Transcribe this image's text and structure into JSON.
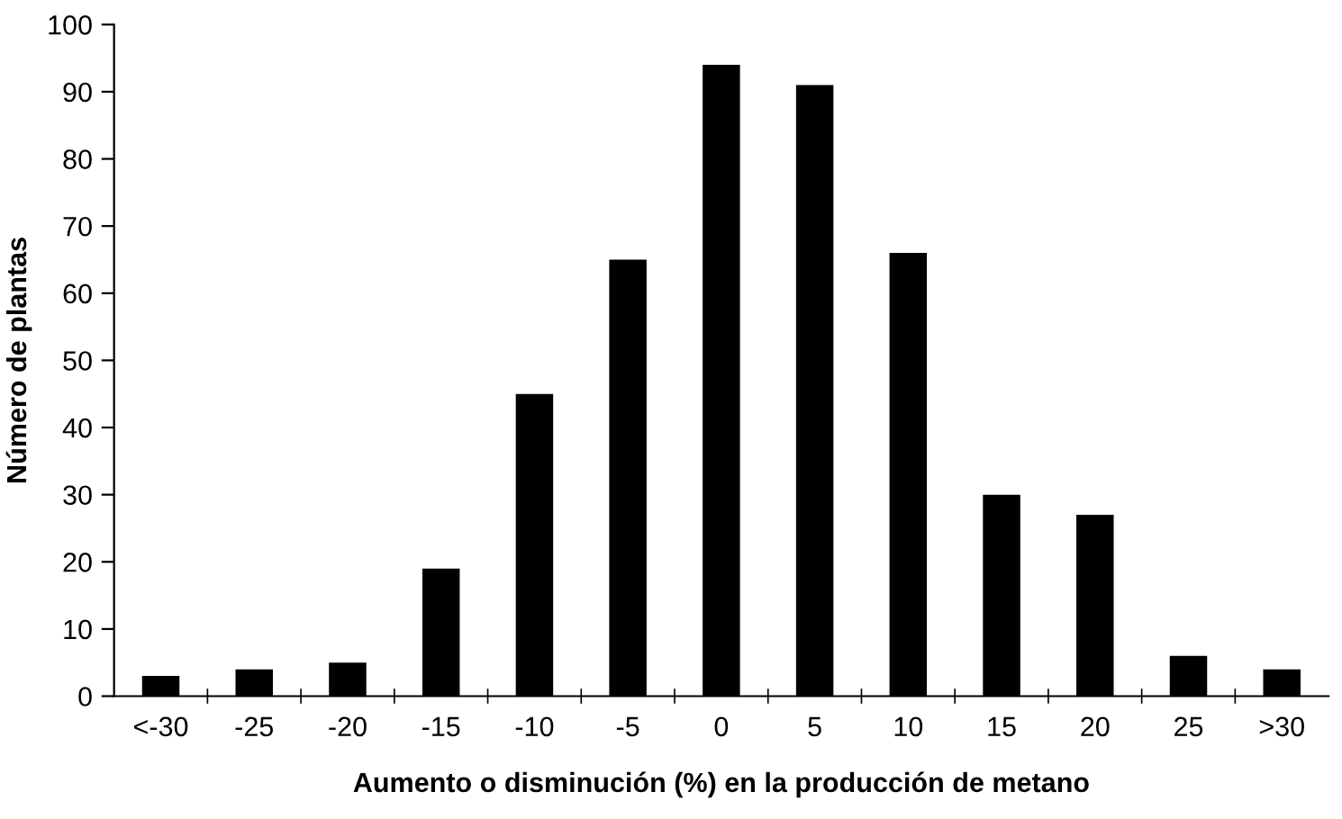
{
  "chart_data": {
    "type": "bar",
    "xlabel": "Aumento o disminución (%) en la producción de metano",
    "ylabel": "Número de plantas",
    "categories": [
      "<-30",
      "-25",
      "-20",
      "-15",
      "-10",
      "-5",
      "0",
      "5",
      "10",
      "15",
      "20",
      "25",
      ">30"
    ],
    "values": [
      3,
      4,
      5,
      19,
      45,
      65,
      94,
      91,
      66,
      30,
      27,
      6,
      4
    ],
    "color": "#000000",
    "ylim": [
      0,
      100
    ],
    "yticks": [
      0,
      10,
      20,
      30,
      40,
      50,
      60,
      70,
      80,
      90,
      100
    ],
    "grid": false,
    "legend": false
  }
}
